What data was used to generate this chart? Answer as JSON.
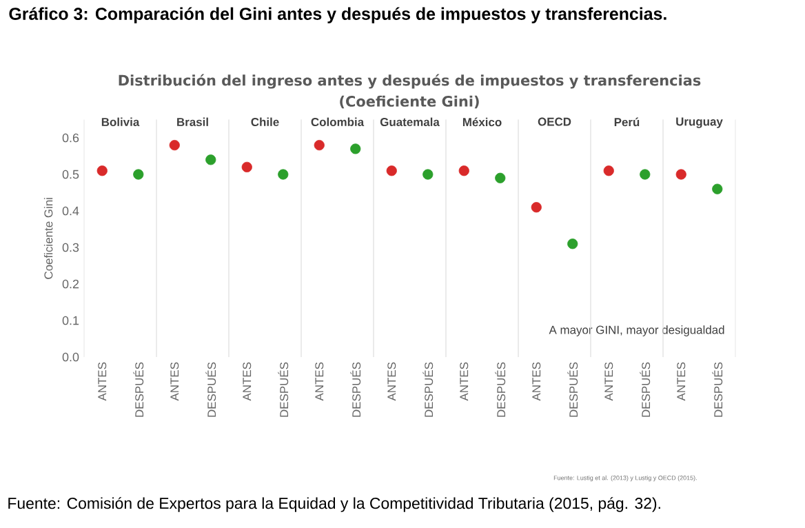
{
  "chart_data": [
    {
      "type": "other",
      "title": "Distribución del ingreso antes y después de impuestos y transferencias",
      "subtitle": "(Coeficiente Gini)",
      "annotations": [
        "Gráfico 3: Comparación del Gini antes y después de impuestos y transferencias.",
        "A mayor GINI, mayor desigualdad",
        "Fuente: Lustig et al. (2013) y Lustig y OECD (2015).",
        "Fuente: Comisión de Expertos para la Equidad y la Competitividad Tributaria (2015, pág. 32)."
      ]
    },
    {
      "type": "scatter",
      "title": "Bolivia",
      "ylabel": "Coeficiente Gini",
      "categories": [
        "ANTES",
        "DESPUÉS"
      ],
      "values": [
        0.51,
        0.5
      ],
      "colors": [
        "#d92a2a",
        "#2ca02c"
      ],
      "ylim": [
        0,
        0.65
      ],
      "yticks": [
        {
          "value": 0,
          "label": "0.0"
        },
        0.1,
        0.2,
        0.3,
        0.4,
        0.5,
        0.6
      ],
      "marker": "circle"
    },
    {
      "type": "scatter",
      "title": "Brasil",
      "categories": [
        "ANTES",
        "DESPUÉS"
      ],
      "values": [
        0.58,
        0.54
      ],
      "colors": [
        "#d92a2a",
        "#2ca02c"
      ],
      "ylim": [
        0,
        0.65
      ],
      "tick_labels": "x",
      "marker": "circle"
    },
    {
      "type": "scatter",
      "title": "Chile",
      "categories": [
        "ANTES",
        "DESPUÉS"
      ],
      "values": [
        0.52,
        0.5
      ],
      "colors": [
        "#d92a2a",
        "#2ca02c"
      ],
      "ylim": [
        0,
        0.65
      ],
      "tick_labels": "x",
      "marker": "circle"
    },
    {
      "type": "scatter",
      "title": "Colombia",
      "categories": [
        "ANTES",
        "DESPUÉS"
      ],
      "values": [
        0.58,
        0.57
      ],
      "colors": [
        "#d92a2a",
        "#2ca02c"
      ],
      "ylim": [
        0,
        0.65
      ],
      "tick_labels": "x",
      "marker": "circle"
    },
    {
      "type": "scatter",
      "title": "Guatemala",
      "categories": [
        "ANTES",
        "DESPUÉS"
      ],
      "values": [
        0.51,
        0.5
      ],
      "colors": [
        "#d92a2a",
        "#2ca02c"
      ],
      "ylim": [
        0,
        0.65
      ],
      "tick_labels": "x",
      "marker": "circle"
    },
    {
      "type": "scatter",
      "title": "México",
      "categories": [
        "ANTES",
        "DESPUÉS"
      ],
      "values": [
        0.51,
        0.49
      ],
      "colors": [
        "#d92a2a",
        "#2ca02c"
      ],
      "ylim": [
        0,
        0.65
      ],
      "tick_labels": "x",
      "marker": "circle"
    },
    {
      "type": "scatter",
      "title": "OECD",
      "categories": [
        "ANTES",
        "DESPUÉS"
      ],
      "values": [
        0.41,
        0.31
      ],
      "colors": [
        "#d92a2a",
        "#2ca02c"
      ],
      "ylim": [
        0,
        0.65
      ],
      "tick_labels": "x",
      "marker": "circle"
    },
    {
      "type": "scatter",
      "title": "Perú",
      "categories": [
        "ANTES",
        "DESPUÉS"
      ],
      "values": [
        0.51,
        0.5
      ],
      "colors": [
        "#d92a2a",
        "#2ca02c"
      ],
      "ylim": [
        0,
        0.65
      ],
      "tick_labels": "x",
      "marker": "circle"
    },
    {
      "type": "scatter",
      "title": "Uruguay",
      "categories": [
        "ANTES",
        "DESPUÉS"
      ],
      "values": [
        0.5,
        0.46
      ],
      "colors": [
        "#d92a2a",
        "#2ca02c"
      ],
      "ylim": [
        0,
        0.65
      ],
      "tick_labels": "x",
      "marker": "circle"
    }
  ]
}
